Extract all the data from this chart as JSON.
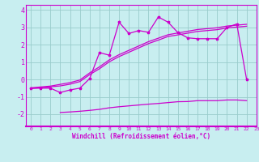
{
  "xlabel": "Windchill (Refroidissement éolien,°C)",
  "bg_color": "#c8eef0",
  "line_color": "#cc00cc",
  "grid_color": "#99cccc",
  "spine_color": "#cc00cc",
  "xlim": [
    -0.5,
    23
  ],
  "ylim": [
    -2.7,
    4.3
  ],
  "yticks": [
    -2,
    -1,
    0,
    1,
    2,
    3,
    4
  ],
  "xticks": [
    0,
    1,
    2,
    3,
    4,
    5,
    6,
    7,
    8,
    9,
    10,
    11,
    12,
    13,
    14,
    15,
    16,
    17,
    18,
    19,
    20,
    21,
    22,
    23
  ],
  "line1_x": [
    0,
    1,
    2,
    3,
    4,
    5,
    6,
    7,
    8,
    9,
    10,
    11,
    12,
    13,
    14,
    15,
    16,
    17,
    18,
    19,
    20,
    21,
    22
  ],
  "line1_y": [
    -0.5,
    -0.5,
    -0.5,
    -0.75,
    -0.6,
    -0.5,
    0.05,
    1.55,
    1.4,
    3.3,
    2.65,
    2.82,
    2.72,
    3.6,
    3.3,
    2.7,
    2.4,
    2.35,
    2.35,
    2.35,
    3.0,
    3.2,
    0.0
  ],
  "line2_x": [
    3,
    4,
    5,
    6,
    7,
    8,
    9,
    10,
    11,
    12,
    13,
    14,
    15,
    16,
    17,
    18,
    19,
    20,
    21,
    22
  ],
  "line2_y": [
    -1.9,
    -1.87,
    -1.83,
    -1.78,
    -1.72,
    -1.63,
    -1.57,
    -1.52,
    -1.47,
    -1.42,
    -1.38,
    -1.33,
    -1.28,
    -1.27,
    -1.22,
    -1.22,
    -1.22,
    -1.18,
    -1.18,
    -1.22
  ],
  "line3_x": [
    0,
    1,
    2,
    3,
    4,
    5,
    6,
    7,
    8,
    9,
    10,
    11,
    12,
    13,
    14,
    15,
    16,
    17,
    18,
    19,
    20,
    21,
    22
  ],
  "line3_y": [
    -0.52,
    -0.47,
    -0.42,
    -0.37,
    -0.27,
    -0.12,
    0.28,
    0.62,
    1.02,
    1.32,
    1.57,
    1.82,
    2.07,
    2.27,
    2.48,
    2.57,
    2.67,
    2.77,
    2.82,
    2.87,
    2.97,
    3.02,
    3.07
  ],
  "line4_x": [
    0,
    1,
    2,
    3,
    4,
    5,
    6,
    7,
    8,
    9,
    10,
    11,
    12,
    13,
    14,
    15,
    16,
    17,
    18,
    19,
    20,
    21,
    22
  ],
  "line4_y": [
    -0.48,
    -0.43,
    -0.38,
    -0.28,
    -0.18,
    -0.03,
    0.38,
    0.73,
    1.13,
    1.43,
    1.68,
    1.93,
    2.18,
    2.38,
    2.58,
    2.68,
    2.78,
    2.88,
    2.93,
    2.98,
    3.08,
    3.13,
    3.18
  ],
  "xticklabel_fontsize": 4.5,
  "yticklabel_fontsize": 6.0,
  "xlabel_fontsize": 5.5
}
